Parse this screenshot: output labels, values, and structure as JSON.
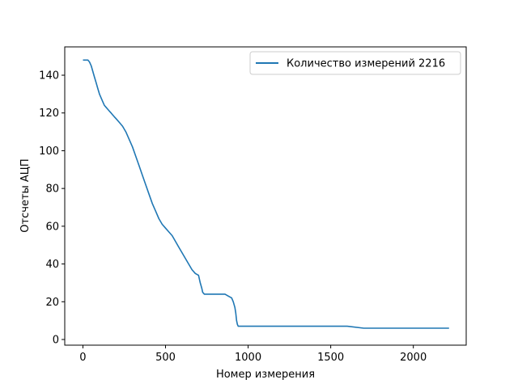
{
  "chart_data": {
    "type": "line",
    "title": "",
    "xlabel": "Номер измерения",
    "ylabel": "Отсчеты АЦП",
    "xlim": [
      -110,
      2320
    ],
    "ylim": [
      -3,
      155
    ],
    "xticks": [
      0,
      500,
      1000,
      1500,
      2000
    ],
    "yticks": [
      0,
      20,
      40,
      60,
      80,
      100,
      120,
      140
    ],
    "grid": false,
    "legend": {
      "placement": "top-right"
    },
    "series": [
      {
        "name": "Количество измерений 2216",
        "color": "#1f77b4",
        "x": [
          0,
          10,
          20,
          30,
          40,
          50,
          60,
          70,
          80,
          90,
          100,
          110,
          120,
          130,
          140,
          150,
          160,
          170,
          180,
          190,
          200,
          220,
          240,
          260,
          280,
          300,
          320,
          340,
          360,
          380,
          400,
          420,
          440,
          460,
          480,
          500,
          520,
          540,
          560,
          580,
          600,
          620,
          640,
          660,
          680,
          700,
          710,
          720,
          725,
          735,
          745,
          760,
          780,
          800,
          820,
          840,
          860,
          880,
          900,
          910,
          920,
          925,
          930,
          935,
          940,
          950,
          975,
          1000,
          1100,
          1200,
          1300,
          1400,
          1500,
          1600,
          1700,
          1800,
          1900,
          2000,
          2100,
          2216
        ],
        "y": [
          148,
          148,
          148,
          148,
          147,
          145,
          142,
          139,
          136,
          133,
          130,
          128,
          126,
          124,
          123,
          122,
          121,
          120,
          119,
          118,
          117,
          115,
          113,
          110,
          106,
          102,
          97,
          92,
          87,
          82,
          77,
          72,
          68,
          64,
          61,
          59,
          57,
          55,
          52,
          49,
          46,
          43,
          40,
          37,
          35,
          34,
          30,
          27,
          25,
          24,
          24,
          24,
          24,
          24,
          24,
          24,
          24,
          23,
          22,
          20,
          17,
          14,
          10,
          8,
          7,
          7,
          7,
          7,
          7,
          7,
          7,
          7,
          7,
          7,
          6,
          6,
          6,
          6,
          6,
          6
        ]
      }
    ]
  }
}
